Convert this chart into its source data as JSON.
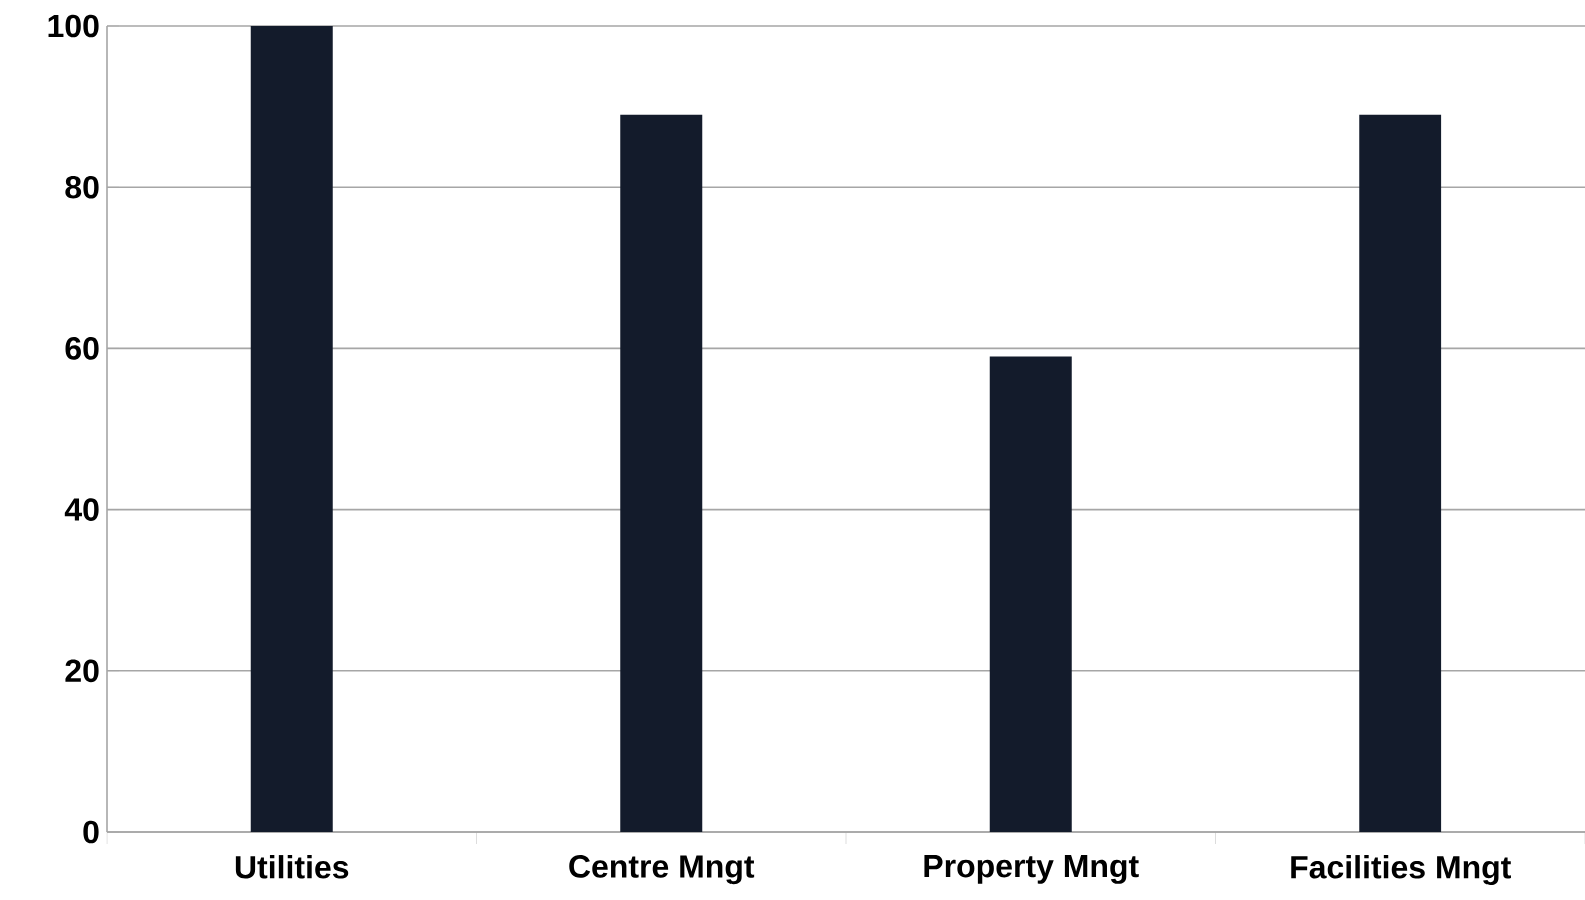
{
  "chart_data": {
    "type": "bar",
    "categories": [
      "Utilities",
      "Centre Mngt",
      "Property Mngt",
      "Facilities Mngt"
    ],
    "values": [
      100,
      89,
      59,
      89
    ],
    "color": "#131b2b",
    "ylim": [
      0,
      100
    ],
    "yticks": [
      0,
      20,
      40,
      60,
      80,
      100
    ],
    "grid": "y"
  }
}
